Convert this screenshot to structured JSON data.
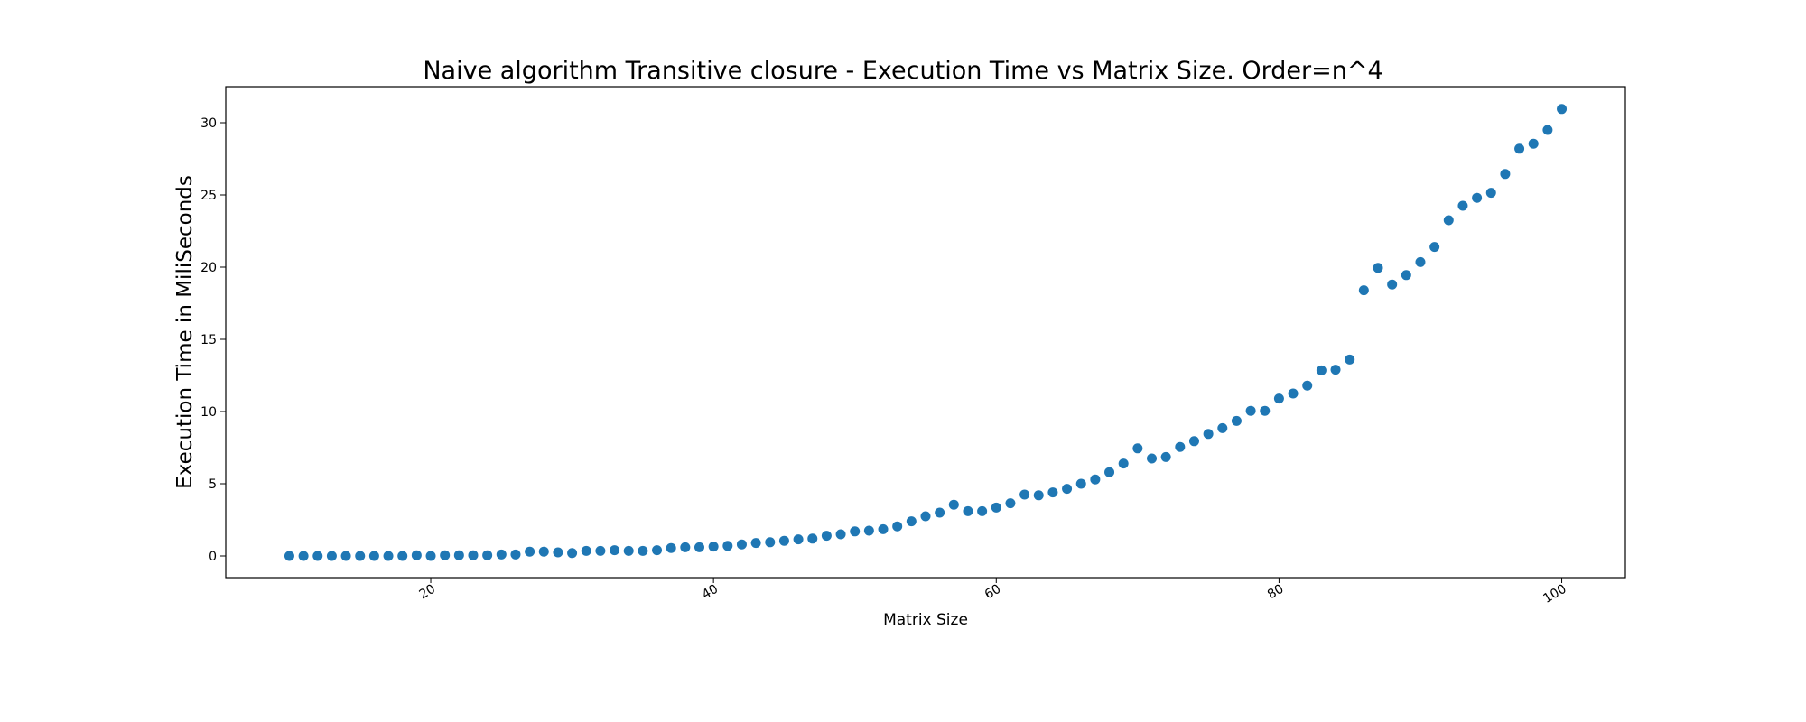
{
  "chart_data": {
    "type": "scatter",
    "title": "Naive algorithm Transitive closure - Execution Time vs Matrix Size. Order=n^4",
    "xlabel": "Matrix Size",
    "ylabel": "Execution Time in MiliSeconds",
    "xlim": [
      5.5,
      104.5
    ],
    "ylim": [
      -1.5,
      32.5
    ],
    "xticks": [
      20,
      40,
      60,
      80,
      100
    ],
    "yticks": [
      0,
      5,
      10,
      15,
      20,
      25,
      30
    ],
    "grid": false,
    "marker_color": "#1f77b4",
    "x": [
      10,
      11,
      12,
      13,
      14,
      15,
      16,
      17,
      18,
      19,
      20,
      21,
      22,
      23,
      24,
      25,
      26,
      27,
      28,
      29,
      30,
      31,
      32,
      33,
      34,
      35,
      36,
      37,
      38,
      39,
      40,
      41,
      42,
      43,
      44,
      45,
      46,
      47,
      48,
      49,
      50,
      51,
      52,
      53,
      54,
      55,
      56,
      57,
      58,
      59,
      60,
      61,
      62,
      63,
      64,
      65,
      66,
      67,
      68,
      69,
      70,
      71,
      72,
      73,
      74,
      75,
      76,
      77,
      78,
      79,
      80,
      81,
      82,
      83,
      84,
      85,
      86,
      87,
      88,
      89,
      90,
      91,
      92,
      93,
      94,
      95,
      96,
      97,
      98,
      99,
      100
    ],
    "y": [
      0.0,
      0.0,
      0.0,
      0.0,
      0.0,
      0.0,
      0.0,
      0.0,
      0.0,
      0.05,
      0.0,
      0.05,
      0.05,
      0.05,
      0.05,
      0.1,
      0.1,
      0.3,
      0.3,
      0.25,
      0.2,
      0.35,
      0.35,
      0.4,
      0.35,
      0.35,
      0.4,
      0.55,
      0.6,
      0.6,
      0.65,
      0.7,
      0.8,
      0.9,
      0.95,
      1.05,
      1.15,
      1.2,
      1.4,
      1.5,
      1.7,
      1.75,
      1.85,
      2.05,
      2.4,
      2.75,
      3.0,
      3.55,
      3.1,
      3.1,
      3.35,
      3.65,
      4.25,
      4.2,
      4.4,
      4.65,
      5.0,
      5.3,
      5.8,
      6.4,
      7.45,
      6.75,
      6.85,
      7.55,
      7.95,
      8.45,
      8.85,
      9.35,
      10.05,
      10.05,
      10.9,
      11.25,
      11.8,
      12.85,
      12.9,
      13.6,
      18.4,
      19.95,
      18.8,
      19.45,
      20.35,
      21.4,
      23.25,
      24.25,
      24.8,
      25.15,
      26.45,
      28.2,
      28.55,
      29.5,
      30.95
    ]
  }
}
